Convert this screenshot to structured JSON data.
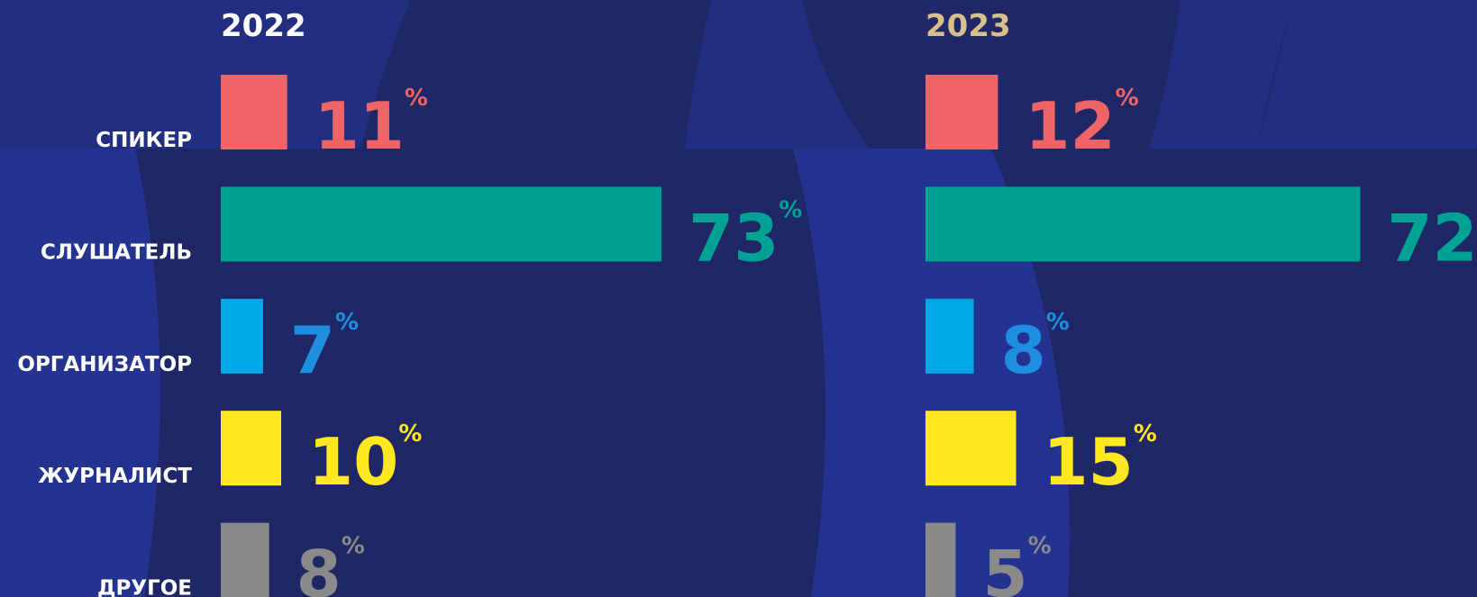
{
  "chart_data": [
    {
      "type": "bar",
      "orientation": "horizontal",
      "title": "2022",
      "title_color": "#ffffff",
      "categories": [
        "СПИКЕР",
        "СЛУШАТЕЛЬ",
        "ОРГАНИЗАТОР",
        "ЖУРНАЛИСТ",
        "ДРУГОЕ"
      ],
      "values": [
        11,
        73,
        7,
        10,
        8
      ],
      "unit": "%",
      "colors": [
        "#ef6464",
        "#00a295",
        "#00a8e8",
        "#ffe81f",
        "#8a8a8a"
      ],
      "label_colors": [
        "#ef6464",
        "#00a295",
        "#1e8fe0",
        "#ffe81f",
        "#8a8a8a"
      ],
      "xlim": [
        0,
        100
      ]
    },
    {
      "type": "bar",
      "orientation": "horizontal",
      "title": "2023",
      "title_color": "#d9c08a",
      "values": [
        12,
        72,
        8,
        15,
        5
      ],
      "unit": "%",
      "colors": [
        "#ef6464",
        "#00a295",
        "#00a8e8",
        "#ffe81f",
        "#8a8a8a"
      ],
      "label_colors": [
        "#ef6464",
        "#00a295",
        "#1e8fe0",
        "#ffe81f",
        "#8a8a8a"
      ],
      "xlim": [
        0,
        100
      ]
    }
  ]
}
